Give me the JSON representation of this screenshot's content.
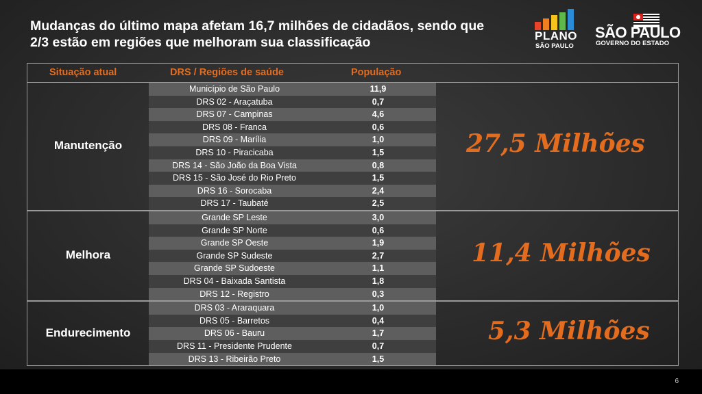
{
  "title_line1": "Mudanças do último mapa afetam 16,7 milhões de cidadãos, sendo que",
  "title_line2": "2/3 estão em regiões que melhoram sua classificação",
  "logos": {
    "plano": {
      "big": "PLANO",
      "small": "SÃO PAULO",
      "bar_colors": [
        "#e8442a",
        "#f07f20",
        "#f5c31c",
        "#5fb84a",
        "#2a8bd6"
      ]
    },
    "governo": {
      "big": "SÃO PAULO",
      "small": "GOVERNO DO ESTADO"
    }
  },
  "table": {
    "headers": {
      "situacao": "Situação atual",
      "drs": "DRS / Regiões de saúde",
      "populacao": "População"
    },
    "groups": [
      {
        "label": "Manutenção",
        "total": "27,5 Milhões",
        "rows": [
          {
            "name": "Município de São Paulo",
            "pop": "11,9"
          },
          {
            "name": "DRS 02 - Araçatuba",
            "pop": "0,7"
          },
          {
            "name": "DRS 07 - Campinas",
            "pop": "4,6"
          },
          {
            "name": "DRS 08 - Franca",
            "pop": "0,6"
          },
          {
            "name": "DRS 09 - Marília",
            "pop": "1,0"
          },
          {
            "name": "DRS 10 - Piracicaba",
            "pop": "1,5"
          },
          {
            "name": "DRS 14 - São João da Boa Vista",
            "pop": "0,8"
          },
          {
            "name": "DRS 15 - São José do Rio Preto",
            "pop": "1,5"
          },
          {
            "name": "DRS 16 - Sorocaba",
            "pop": "2,4"
          },
          {
            "name": "DRS 17 - Taubaté",
            "pop": "2,5"
          }
        ]
      },
      {
        "label": "Melhora",
        "total": "11,4 Milhões",
        "rows": [
          {
            "name": "Grande SP Leste",
            "pop": "3,0"
          },
          {
            "name": "Grande SP Norte",
            "pop": "0,6"
          },
          {
            "name": "Grande SP Oeste",
            "pop": "1,9"
          },
          {
            "name": "Grande SP Sudeste",
            "pop": "2,7"
          },
          {
            "name": "Grande SP Sudoeste",
            "pop": "1,1"
          },
          {
            "name": "DRS 04 - Baixada Santista",
            "pop": "1,8"
          },
          {
            "name": "DRS 12 - Registro",
            "pop": "0,3"
          }
        ]
      },
      {
        "label": "Endurecimento",
        "total": "5,3 Milhões",
        "rows": [
          {
            "name": "DRS 03 - Araraquara",
            "pop": "1,0"
          },
          {
            "name": "DRS 05 - Barretos",
            "pop": "0,4"
          },
          {
            "name": "DRS 06 - Bauru",
            "pop": "1,7"
          },
          {
            "name": "DRS 11 - Presidente Prudente",
            "pop": "0,7"
          },
          {
            "name": "DRS 13 - Ribeirão Preto",
            "pop": "1,5"
          }
        ]
      }
    ]
  },
  "page_number": "6",
  "colors": {
    "accent": "#e46c1e",
    "row_light": "#5e5e5e",
    "row_dark": "#3f3f3f"
  }
}
